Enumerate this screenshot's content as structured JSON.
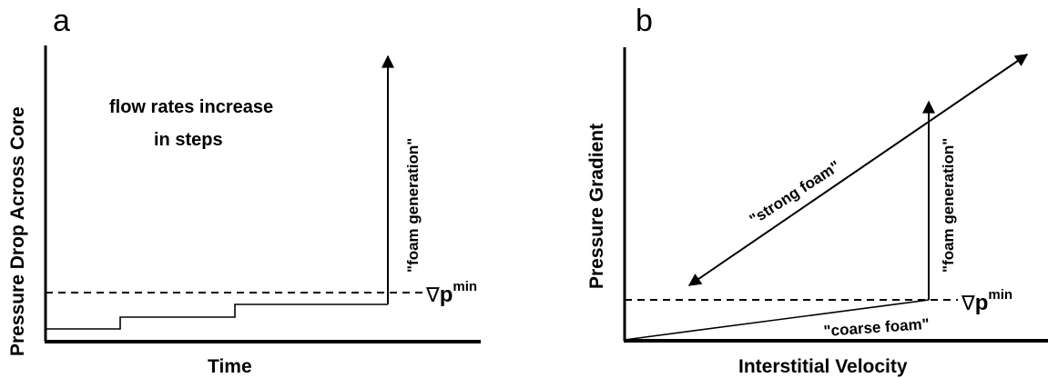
{
  "panel_a": {
    "letter": "a",
    "y_label": "Pressure Drop Across Core",
    "x_label": "Time",
    "note_line1": "flow rates increase",
    "note_line2": "in steps",
    "arrow_label": "\"foam generation\"",
    "threshold_nabla": "∇",
    "threshold_p": "p",
    "threshold_sup": "min"
  },
  "panel_b": {
    "letter": "b",
    "y_label": "Pressure Gradient",
    "x_label": "Interstitial Velocity",
    "strong_label": "\"strong foam\"",
    "coarse_label": "\"coarse foam\"",
    "arrow_label": "\"foam generation\"",
    "threshold_nabla": "∇",
    "threshold_p": "p",
    "threshold_sup": "min"
  }
}
